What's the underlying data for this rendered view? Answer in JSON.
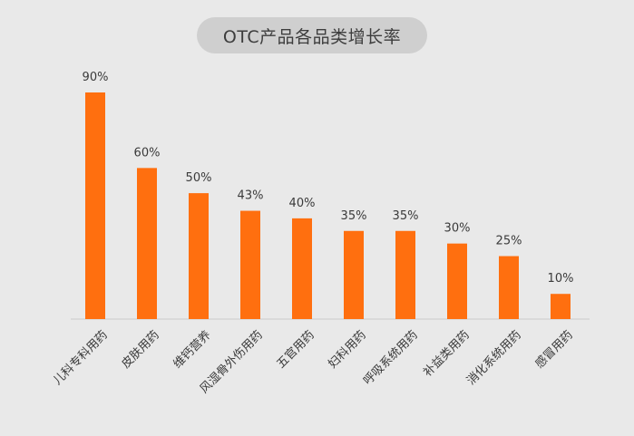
{
  "chart_data": {
    "type": "bar",
    "title": "OTC产品各品类增长率",
    "categories": [
      "儿科专科用药",
      "皮肤用药",
      "维钙营养",
      "风湿骨外伤用药",
      "五官用药",
      "妇科用药",
      "呼吸系统用药",
      "补益类用药",
      "消化系统用药",
      "感冒用药"
    ],
    "values": [
      90,
      60,
      50,
      43,
      40,
      35,
      35,
      30,
      25,
      10
    ],
    "value_labels": [
      "90%",
      "60%",
      "50%",
      "43%",
      "40%",
      "35%",
      "35%",
      "30%",
      "25%",
      "10%"
    ],
    "value_unit": "%",
    "ylim": [
      0,
      100
    ],
    "grid": false,
    "legend": "none",
    "colors": {
      "bar": "#ff6f0f",
      "background": "#e9e9e9",
      "title_pill": "#cfcfcf",
      "axis": "#cccccc",
      "text": "#3a3a3a"
    }
  }
}
